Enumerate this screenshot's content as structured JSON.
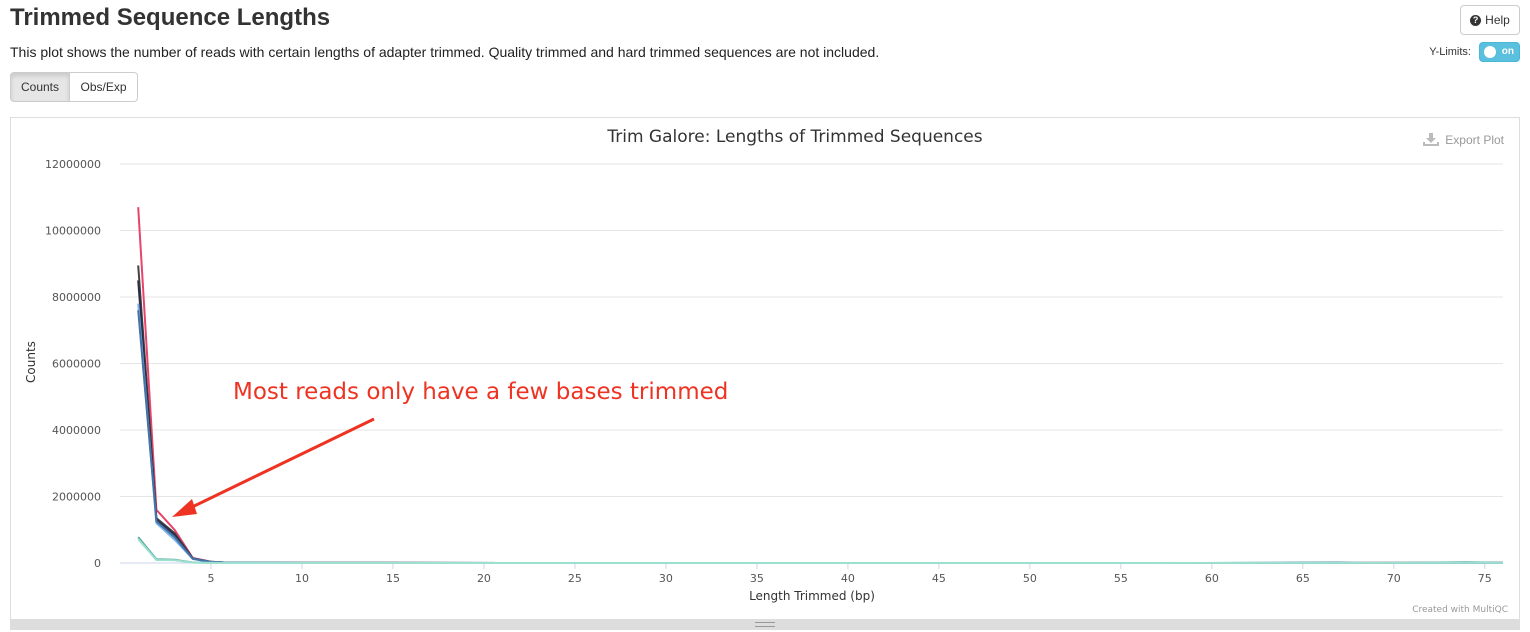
{
  "header": {
    "title": "Trimmed Sequence Lengths",
    "description": "This plot shows the number of reads with certain lengths of adapter trimmed. Quality trimmed and hard trimmed sequences are not included.",
    "help_label": "Help",
    "ylimits_label": "Y-Limits:",
    "toggle_label": "on"
  },
  "tabs": [
    {
      "label": "Counts",
      "active": true
    },
    {
      "label": "Obs/Exp",
      "active": false
    }
  ],
  "plot": {
    "export_label": "Export Plot",
    "credit": "Created with MultiQC",
    "annotation": "Most reads only have a few bases trimmed"
  },
  "colors": {
    "annotation": "#ee3322",
    "toggle": "#5bc0de"
  },
  "chart_data": {
    "type": "line",
    "title": "Trim Galore: Lengths of Trimmed Sequences",
    "xlabel": "Length Trimmed (bp)",
    "ylabel": "Counts",
    "xlim": [
      0,
      76
    ],
    "ylim": [
      0,
      12000000
    ],
    "xticks": [
      5,
      10,
      15,
      20,
      25,
      30,
      35,
      40,
      45,
      50,
      55,
      60,
      65,
      70,
      75
    ],
    "yticks": [
      0,
      2000000,
      4000000,
      6000000,
      8000000,
      10000000,
      12000000
    ],
    "grid": true,
    "series": [
      {
        "color": "#e8446a",
        "points": [
          [
            1,
            10700000
          ],
          [
            2,
            1600000
          ],
          [
            3,
            1000000
          ],
          [
            4,
            150000
          ],
          [
            5,
            40000
          ],
          [
            6,
            10000
          ],
          [
            10,
            3000
          ],
          [
            30,
            1000
          ],
          [
            60,
            1000
          ],
          [
            76,
            5000
          ]
        ]
      },
      {
        "color": "#434348",
        "points": [
          [
            1,
            8950000
          ],
          [
            2,
            1350000
          ],
          [
            3,
            900000
          ],
          [
            4,
            140000
          ],
          [
            5,
            35000
          ],
          [
            6,
            9000
          ],
          [
            10,
            2500
          ],
          [
            30,
            1000
          ],
          [
            60,
            1000
          ],
          [
            76,
            4000
          ]
        ]
      },
      {
        "color": "#2b2d42",
        "points": [
          [
            1,
            8500000
          ],
          [
            2,
            1300000
          ],
          [
            3,
            850000
          ],
          [
            4,
            130000
          ],
          [
            5,
            33000
          ],
          [
            6,
            8000
          ],
          [
            10,
            2500
          ],
          [
            30,
            1000
          ],
          [
            60,
            1000
          ],
          [
            76,
            4000
          ]
        ]
      },
      {
        "color": "#7cb5ec",
        "points": [
          [
            1,
            7800000
          ],
          [
            2,
            1200000
          ],
          [
            3,
            700000
          ],
          [
            4,
            120000
          ],
          [
            5,
            30000
          ],
          [
            6,
            8000
          ],
          [
            10,
            2000
          ],
          [
            30,
            1000
          ],
          [
            60,
            1000
          ],
          [
            76,
            4000
          ]
        ]
      },
      {
        "color": "#4572a7",
        "points": [
          [
            1,
            7600000
          ],
          [
            2,
            1250000
          ],
          [
            3,
            780000
          ],
          [
            4,
            125000
          ],
          [
            5,
            30000
          ],
          [
            6,
            8000
          ],
          [
            10,
            2000
          ],
          [
            30,
            1000
          ],
          [
            60,
            1000
          ],
          [
            67,
            15000
          ],
          [
            68,
            1000
          ],
          [
            76,
            3000
          ]
        ]
      },
      {
        "color": "#5aa9a0",
        "points": [
          [
            1,
            780000
          ],
          [
            2,
            110000
          ],
          [
            3,
            100000
          ],
          [
            4,
            15000
          ],
          [
            5,
            5000
          ],
          [
            6,
            2000
          ],
          [
            10,
            1000
          ],
          [
            30,
            500
          ],
          [
            70,
            500
          ],
          [
            74,
            20000
          ],
          [
            76,
            3000
          ]
        ]
      },
      {
        "color": "#9ee0d0",
        "points": [
          [
            1,
            720000
          ],
          [
            2,
            90000
          ],
          [
            3,
            80000
          ],
          [
            4,
            12000
          ],
          [
            5,
            4000
          ],
          [
            6,
            1500
          ],
          [
            10,
            800
          ],
          [
            30,
            500
          ],
          [
            76,
            2000
          ]
        ]
      }
    ]
  }
}
